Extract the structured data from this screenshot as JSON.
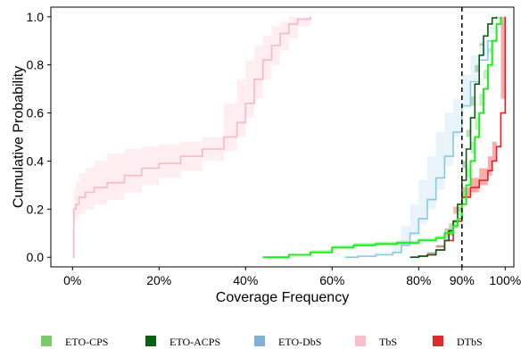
{
  "chart_data": {
    "type": "line",
    "xlabel": "Coverage Frequency",
    "ylabel": "Cumulative Probability",
    "xlim": [
      -5,
      102
    ],
    "ylim": [
      -0.04,
      1.04
    ],
    "x_tick_values": [
      0,
      20,
      40,
      60,
      80,
      90,
      100
    ],
    "x_tick_labels": [
      "0%",
      "20%",
      "40%",
      "60%",
      "80%",
      "90%",
      "100%"
    ],
    "y_tick_values": [
      0.0,
      0.2,
      0.4,
      0.6,
      0.8,
      1.0
    ],
    "y_tick_labels": [
      "0.0",
      "0.2",
      "0.4",
      "0.6",
      "0.8",
      "1.0"
    ],
    "vline": {
      "x": 90,
      "style": "dashed",
      "color": "#000000"
    },
    "grid": false,
    "legend_position": "bottom",
    "series": [
      {
        "name": "TbS",
        "color": "#f7b8c4",
        "band_color": "#fde0e5",
        "x": [
          0,
          0.3,
          0.8,
          1.5,
          3,
          5,
          8,
          12,
          16,
          20,
          25,
          30,
          35,
          38,
          40,
          42,
          44,
          46,
          48,
          50,
          52,
          55
        ],
        "y": [
          0.0,
          0.2,
          0.22,
          0.25,
          0.27,
          0.29,
          0.31,
          0.34,
          0.37,
          0.39,
          0.42,
          0.45,
          0.5,
          0.56,
          0.64,
          0.74,
          0.82,
          0.88,
          0.93,
          0.97,
          0.99,
          1.0
        ],
        "band_lower": [
          0.0,
          0.12,
          0.14,
          0.16,
          0.18,
          0.2,
          0.22,
          0.24,
          0.27,
          0.3,
          0.33,
          0.36,
          0.4,
          0.44,
          0.5,
          0.58,
          0.66,
          0.74,
          0.8,
          0.86,
          0.91,
          0.96
        ],
        "band_upper": [
          0.0,
          0.28,
          0.31,
          0.35,
          0.37,
          0.4,
          0.43,
          0.45,
          0.46,
          0.47,
          0.48,
          0.5,
          0.64,
          0.74,
          0.82,
          0.88,
          0.92,
          0.96,
          0.98,
          1.0,
          1.0,
          1.0
        ]
      },
      {
        "name": "ETO-DbS",
        "color": "#87c8e8",
        "band_color": "#d6ebf6",
        "x": [
          63,
          66,
          70,
          74,
          76,
          78,
          80,
          82,
          84,
          86,
          88,
          90,
          92,
          94,
          96,
          98,
          100
        ],
        "y": [
          0.0,
          0.004,
          0.01,
          0.02,
          0.05,
          0.1,
          0.16,
          0.24,
          0.33,
          0.42,
          0.52,
          0.63,
          0.73,
          0.82,
          0.9,
          0.97,
          1.0
        ],
        "band_lower": [
          0.0,
          0.002,
          0.005,
          0.01,
          0.02,
          0.05,
          0.09,
          0.14,
          0.2,
          0.28,
          0.38,
          0.5,
          0.62,
          0.74,
          0.84,
          0.93,
          1.0
        ],
        "band_upper": [
          0.0,
          0.006,
          0.02,
          0.06,
          0.13,
          0.22,
          0.32,
          0.42,
          0.52,
          0.6,
          0.66,
          0.76,
          0.84,
          0.9,
          0.96,
          1.0,
          1.0
        ]
      },
      {
        "name": "DTbS",
        "color": "#ee1c1c",
        "band_color": "#f46a6a",
        "x": [
          78,
          80,
          82,
          84,
          86,
          88,
          90,
          92,
          94,
          96,
          97,
          98,
          99,
          100
        ],
        "y": [
          0.0,
          0.004,
          0.01,
          0.03,
          0.07,
          0.15,
          0.25,
          0.29,
          0.32,
          0.36,
          0.4,
          0.46,
          0.6,
          1.0
        ],
        "band_lower": [
          0.0,
          0.002,
          0.006,
          0.02,
          0.05,
          0.12,
          0.21,
          0.25,
          0.27,
          0.3,
          0.34,
          0.4,
          0.54,
          1.0
        ],
        "band_upper": [
          0.0,
          0.006,
          0.015,
          0.04,
          0.09,
          0.19,
          0.29,
          0.33,
          0.37,
          0.42,
          0.48,
          0.54,
          0.66,
          1.0
        ]
      },
      {
        "name": "ETO-ACPS",
        "color": "#0a5c12",
        "band_color": "#0a5c12",
        "x": [
          78,
          80,
          82,
          84,
          86,
          87,
          88,
          89,
          90,
          91,
          92,
          93,
          94,
          95,
          96,
          97,
          98
        ],
        "y": [
          0.0,
          0.005,
          0.01,
          0.03,
          0.07,
          0.11,
          0.15,
          0.22,
          0.32,
          0.45,
          0.58,
          0.72,
          0.84,
          0.92,
          0.97,
          0.995,
          1.0
        ],
        "band_lower": [
          0.0,
          0.003,
          0.006,
          0.02,
          0.05,
          0.08,
          0.12,
          0.18,
          0.27,
          0.4,
          0.53,
          0.67,
          0.8,
          0.89,
          0.95,
          0.99,
          1.0
        ],
        "band_upper": [
          0.0,
          0.007,
          0.015,
          0.04,
          0.09,
          0.14,
          0.19,
          0.27,
          0.37,
          0.5,
          0.63,
          0.77,
          0.88,
          0.95,
          0.99,
          1.0,
          1.0
        ]
      },
      {
        "name": "ETO-CPS",
        "color": "#19ef19",
        "band_color": "#8ce88c",
        "x": [
          44,
          50,
          55,
          60,
          65,
          70,
          75,
          80,
          84,
          86,
          88,
          89,
          90,
          91,
          92,
          93,
          94,
          95,
          96,
          97,
          98,
          99
        ],
        "y": [
          0.0,
          0.01,
          0.02,
          0.04,
          0.05,
          0.055,
          0.06,
          0.07,
          0.08,
          0.1,
          0.13,
          0.16,
          0.22,
          0.3,
          0.4,
          0.5,
          0.6,
          0.7,
          0.8,
          0.9,
          0.97,
          1.0
        ],
        "band_lower": [
          0.0,
          0.005,
          0.015,
          0.03,
          0.04,
          0.045,
          0.05,
          0.06,
          0.07,
          0.08,
          0.1,
          0.12,
          0.17,
          0.24,
          0.33,
          0.43,
          0.53,
          0.63,
          0.74,
          0.85,
          0.94,
          1.0
        ],
        "band_upper": [
          0.0,
          0.015,
          0.025,
          0.05,
          0.06,
          0.065,
          0.07,
          0.08,
          0.09,
          0.12,
          0.16,
          0.21,
          0.28,
          0.37,
          0.48,
          0.58,
          0.68,
          0.78,
          0.87,
          0.94,
          0.99,
          1.0
        ]
      }
    ]
  },
  "legend": {
    "items": [
      {
        "label": "ETO-CPS",
        "color": "#7cc96b"
      },
      {
        "label": "ETO-ACPS",
        "color": "#0a6012"
      },
      {
        "label": "ETO-DbS",
        "color": "#7fb0d8"
      },
      {
        "label": "TbS",
        "color": "#f9c0cb"
      },
      {
        "label": "DTbS",
        "color": "#e02a2a"
      }
    ]
  }
}
